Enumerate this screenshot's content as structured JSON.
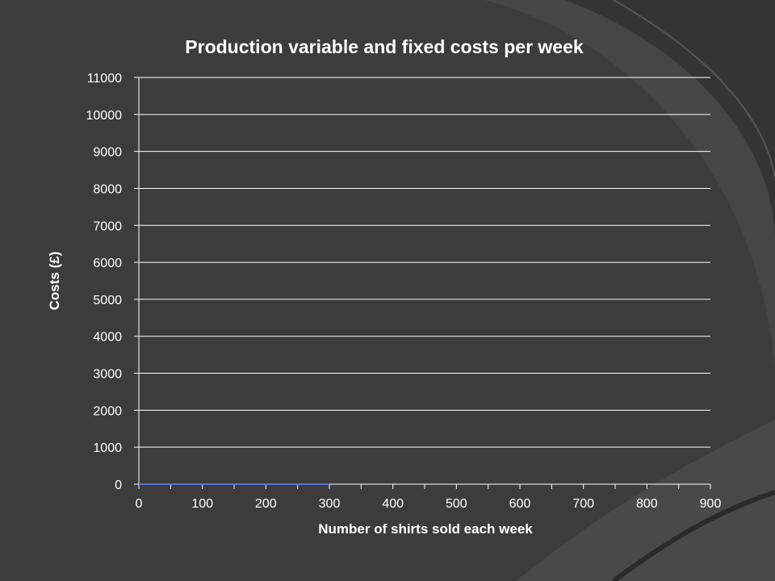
{
  "slide": {
    "background": "#3c3c3c",
    "accent": "#4a4a4a"
  },
  "chart_data": {
    "type": "line",
    "title": "Production variable and fixed costs per week",
    "xlabel": "Number of shirts sold each week",
    "ylabel": "Costs (£)",
    "xlim": [
      0,
      900
    ],
    "ylim": [
      0,
      11000
    ],
    "x_ticks": [
      "0",
      "100",
      "200",
      "300",
      "400",
      "500",
      "600",
      "700",
      "800",
      "900"
    ],
    "y_ticks": [
      "0",
      "1000",
      "2000",
      "3000",
      "4000",
      "5000",
      "6000",
      "7000",
      "8000",
      "9000",
      "10000",
      "11000"
    ],
    "grid": true,
    "legend": "none",
    "series": [
      {
        "color": "#5b6fd8",
        "x": [
          0,
          300
        ],
        "values": [
          0,
          0
        ]
      }
    ],
    "colors": {
      "text": "#ffffff",
      "grid": "#ffffff"
    }
  }
}
